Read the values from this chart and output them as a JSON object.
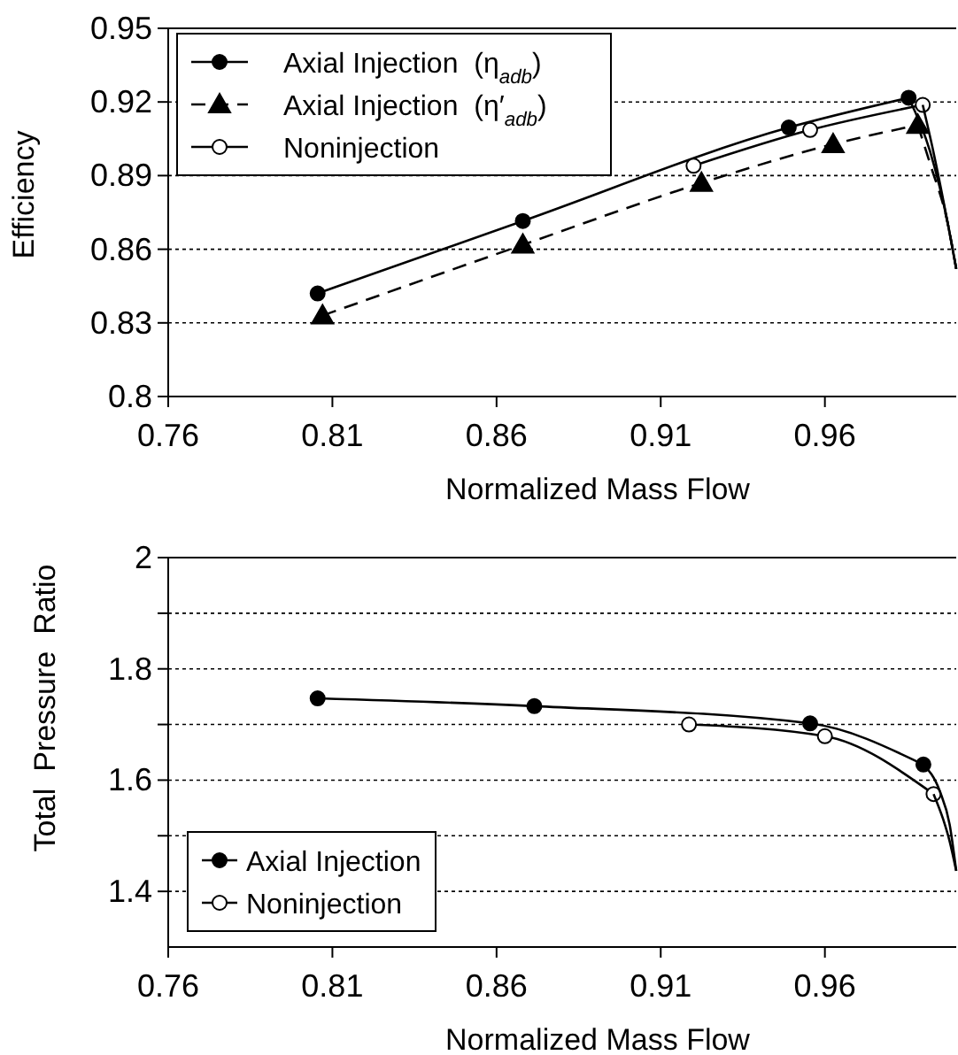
{
  "chart_data": [
    {
      "type": "line",
      "xlabel": "Normalized Mass Flow",
      "ylabel": "Efficiency",
      "xlim": [
        0.76,
        1.0
      ],
      "xticks": [
        0.76,
        0.81,
        0.86,
        0.91,
        0.96
      ],
      "ylim": [
        0.8,
        0.95
      ],
      "yticks": [
        0.8,
        0.83,
        0.86,
        0.89,
        0.92,
        0.95
      ],
      "grid": "y",
      "legend": "top left",
      "line_style": "solid",
      "series": [
        {
          "name": "Axial Injection  (η$_{adb}$)",
          "color": "#000000",
          "marker": "circle",
          "x": [
            0.8055,
            0.868,
            0.949,
            0.9855
          ],
          "values": [
            0.842,
            0.8715,
            0.9096,
            0.9217
          ]
        },
        {
          "name": "Axial Injection  (η′$_{adb}$)",
          "color": "#000000",
          "marker": "triangle",
          "line_style": "dashed",
          "x": [
            0.807,
            0.868,
            0.9224,
            0.9625,
            0.9883
          ],
          "values": [
            0.833,
            0.8618,
            0.887,
            0.9028,
            0.9106
          ]
        },
        {
          "name": "Noninjection",
          "color": "#ffffff",
          "marker": "circle",
          "x": [
            0.92,
            0.9555,
            0.9898
          ],
          "values": [
            0.894,
            0.9086,
            0.9188
          ]
        },
        {
          "type": "line",
          "color": "#000000",
          "marker": "none",
          "x": [
            0.9855,
            0.992,
            0.9975,
            1.0
          ],
          "values": [
            0.9217,
            0.9,
            0.87,
            0.852
          ]
        },
        {
          "type": "line",
          "color": "#000000",
          "marker": "none",
          "line_style": "dashed",
          "x": [
            0.9883,
            0.992,
            0.9975,
            1.0
          ],
          "values": [
            0.9106,
            0.895,
            0.87,
            0.852
          ]
        },
        {
          "type": "line",
          "color": "#000000",
          "marker": "none",
          "x": [
            0.9898,
            0.993,
            0.9975,
            1.0
          ],
          "values": [
            0.9188,
            0.9,
            0.87,
            0.852
          ]
        }
      ]
    },
    {
      "type": "line",
      "xlabel": "Normalized Mass Flow",
      "ylabel": "Total  Pressure  Ratio",
      "xlim": [
        0.76,
        1.0
      ],
      "xticks": [
        0.76,
        0.81,
        0.86,
        0.91,
        0.96
      ],
      "ylim": [
        1.3,
        2.0
      ],
      "yticks": [
        {
          "value": 1.4,
          "label": "1.4"
        },
        {
          "value": 1.5,
          "label": null
        },
        {
          "value": 1.6,
          "label": "1.6"
        },
        {
          "value": 1.7,
          "label": null
        },
        {
          "value": 1.8,
          "label": "1.8"
        },
        {
          "value": 1.9,
          "label": null
        },
        {
          "value": 2.0,
          "label": "2"
        }
      ],
      "grid": "y",
      "legend": "bottom left",
      "line_style": "solid",
      "series": [
        {
          "name": "Axial Injection",
          "color": "#000000",
          "marker": "circle",
          "x": [
            0.8055,
            0.8715,
            0.9555,
            0.99
          ],
          "values": [
            1.747,
            1.733,
            1.702,
            1.628
          ]
        },
        {
          "name": "Noninjection",
          "color": "#ffffff",
          "marker": "circle",
          "x": [
            0.9186,
            0.96,
            0.9931
          ],
          "values": [
            1.7,
            1.679,
            1.575
          ]
        },
        {
          "type": "line",
          "color": "#000000",
          "marker": "none",
          "x": [
            0.99,
            0.995,
            0.998,
            1.0
          ],
          "values": [
            1.628,
            1.58,
            1.52,
            1.437
          ]
        },
        {
          "type": "line",
          "color": "#000000",
          "marker": "none",
          "x": [
            0.9931,
            0.996,
            0.998,
            1.0
          ],
          "values": [
            1.575,
            1.53,
            1.49,
            1.437
          ]
        }
      ]
    }
  ]
}
